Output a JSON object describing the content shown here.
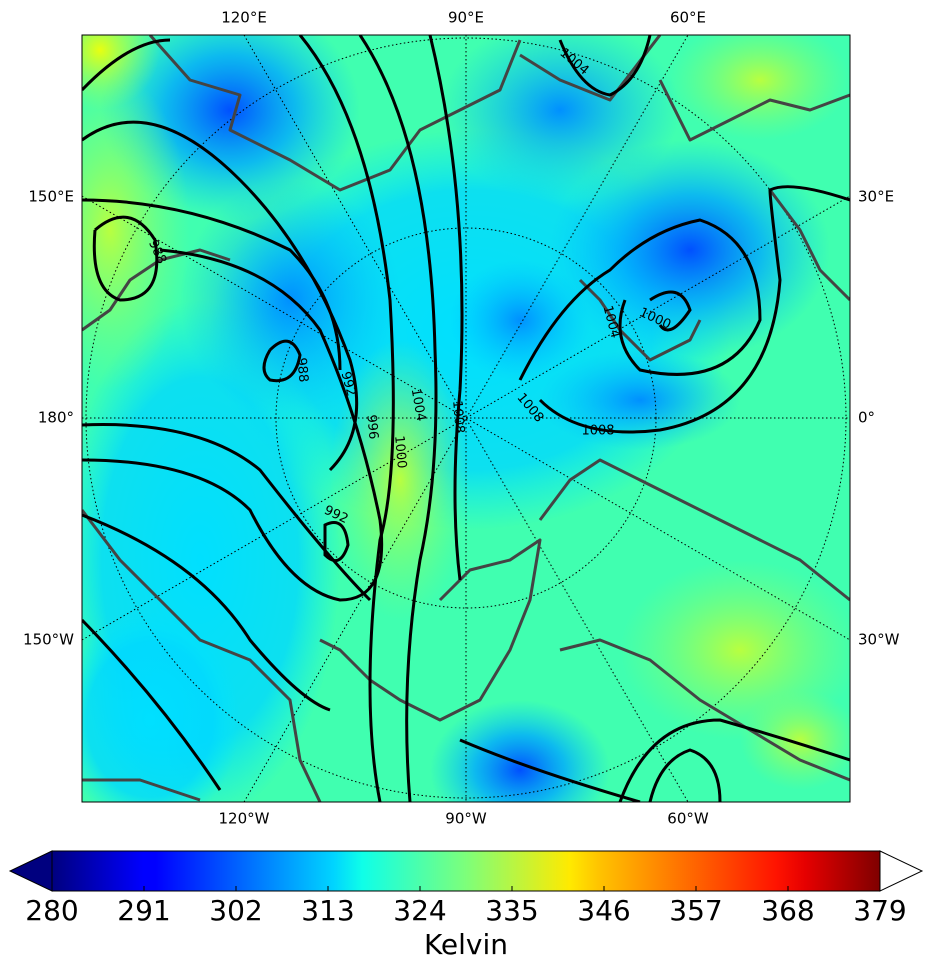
{
  "map": {
    "top_labels": [
      "120°E",
      "90°E",
      "60°E"
    ],
    "bottom_labels": [
      "120°W",
      "90°W",
      "60°W"
    ],
    "left_labels": [
      "150°E",
      "180°",
      "150°W"
    ],
    "right_labels": [
      "30°E",
      "0°",
      "30°W"
    ],
    "contour_labels": [
      "1004",
      "988",
      "988",
      "992",
      "996",
      "1000",
      "1004",
      "1008",
      "1008",
      "1008",
      "1004",
      "1000",
      "992"
    ]
  },
  "colorbar": {
    "label": "Kelvin",
    "colormap": "jet",
    "range": [
      280,
      379
    ],
    "ticks": [
      280,
      291,
      302,
      313,
      324,
      335,
      346,
      357,
      368,
      379
    ]
  }
}
